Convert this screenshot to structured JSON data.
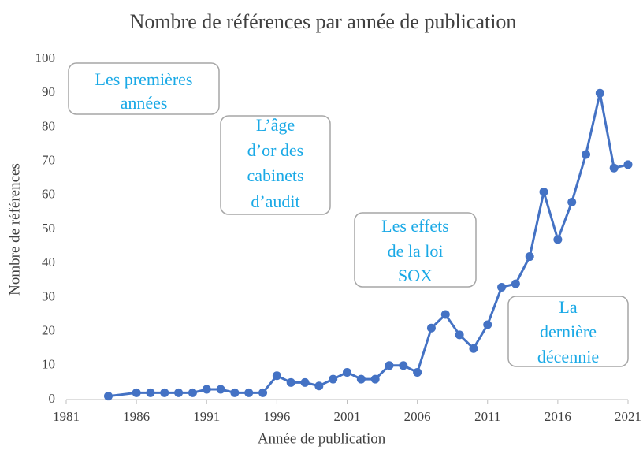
{
  "chart_data": {
    "type": "line",
    "title": "Nombre de références par année de publication",
    "x_label": "Année de publication",
    "y_label": "Nombre de références",
    "x": [
      1984,
      1986,
      1987,
      1988,
      1989,
      1990,
      1991,
      1992,
      1993,
      1994,
      1995,
      1996,
      1997,
      1998,
      1999,
      2000,
      2001,
      2002,
      2003,
      2004,
      2005,
      2006,
      2007,
      2008,
      2009,
      2010,
      2011,
      2012,
      2013,
      2014,
      2015,
      2016,
      2017,
      2018,
      2019,
      2020,
      2021
    ],
    "series": [
      {
        "name": "Nombre de références",
        "color": "#4472c4",
        "values": [
          1,
          2,
          2,
          2,
          2,
          2,
          3,
          3,
          2,
          2,
          2,
          7,
          5,
          5,
          4,
          6,
          8,
          6,
          6,
          10,
          10,
          8,
          21,
          25,
          19,
          15,
          22,
          33,
          34,
          42,
          61,
          47,
          58,
          72,
          90,
          68,
          69
        ]
      }
    ],
    "xlim": [
      1981,
      2021
    ],
    "xticks": [
      1981,
      1986,
      1991,
      1996,
      2001,
      2006,
      2011,
      2016,
      2021
    ],
    "ylim": [
      0,
      100
    ],
    "yticks": [
      0,
      10,
      20,
      30,
      40,
      50,
      60,
      70,
      80,
      90,
      100
    ],
    "grid": false,
    "annotations": [
      {
        "lines": [
          "Les premières",
          "années"
        ]
      },
      {
        "lines": [
          "L’âge",
          "d’or des",
          "cabinets",
          "d’audit"
        ]
      },
      {
        "lines": [
          "Les effets",
          "de la loi",
          "SOX"
        ]
      },
      {
        "lines": [
          "La",
          "dernière",
          "décennie"
        ]
      }
    ]
  }
}
